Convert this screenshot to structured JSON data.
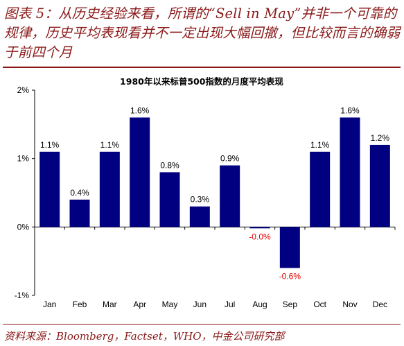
{
  "caption": {
    "text": "图表 5：从历史经验来看，所谓的“Sell in May”并非一个可靠的规律，历史平均表现看并不一定出现大幅回撤，但比较而言的确弱于前四个月"
  },
  "source": {
    "text": "资料来源：Bloomberg，Factset，WHO，中金公司研究部"
  },
  "colors": {
    "bar": "#000080",
    "caption": "#8b1a1a",
    "negative_label": "#e00000"
  },
  "chart_data": {
    "type": "bar",
    "title": "1980年以来标普500指数的月度平均表现",
    "categories": [
      "Jan",
      "Feb",
      "Mar",
      "Apr",
      "May",
      "Jun",
      "Jul",
      "Aug",
      "Sep",
      "Oct",
      "Nov",
      "Dec"
    ],
    "values": [
      1.1,
      0.4,
      1.1,
      1.6,
      0.8,
      0.3,
      0.9,
      -0.02,
      -0.6,
      1.1,
      1.6,
      1.2
    ],
    "data_labels": [
      "1.1%",
      "0.4%",
      "1.1%",
      "1.6%",
      "0.8%",
      "0.3%",
      "0.9%",
      "-0.0%",
      "-0.6%",
      "1.1%",
      "1.6%",
      "1.2%"
    ],
    "ylim": [
      -1,
      2
    ],
    "yticks": [
      -1,
      0,
      1,
      2
    ],
    "ytick_labels": [
      "-1%",
      "0%",
      "1%",
      "2%"
    ],
    "xlabel": "",
    "ylabel": "",
    "grid": false,
    "legend": "none"
  }
}
